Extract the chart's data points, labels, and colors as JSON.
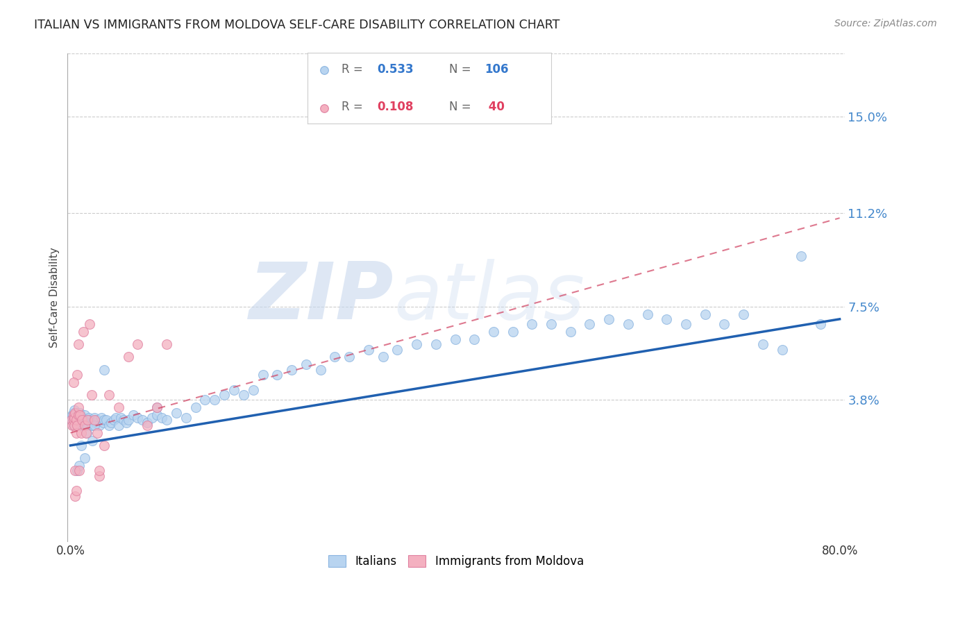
{
  "title": "ITALIAN VS IMMIGRANTS FROM MOLDOVA SELF-CARE DISABILITY CORRELATION CHART",
  "source": "Source: ZipAtlas.com",
  "ylabel_ticks": [
    0.038,
    0.075,
    0.112,
    0.15
  ],
  "ylabel_labels": [
    "3.8%",
    "7.5%",
    "11.2%",
    "15.0%"
  ],
  "xmin": 0.0,
  "xmax": 0.8,
  "ymin": -0.018,
  "ymax": 0.175,
  "watermark_zip": "ZIP",
  "watermark_atlas": "atlas",
  "legend_italian_r": "0.533",
  "legend_italian_n": "106",
  "legend_moldova_r": "0.108",
  "legend_moldova_n": " 40",
  "italian_color": "#b8d4f0",
  "moldova_color": "#f4b0c0",
  "line_italian_color": "#2060b0",
  "line_moldova_color": "#d04060",
  "ylabel": "Self-Care Disability",
  "italian_x": [
    0.001,
    0.002,
    0.002,
    0.003,
    0.003,
    0.004,
    0.004,
    0.005,
    0.005,
    0.006,
    0.006,
    0.007,
    0.007,
    0.008,
    0.008,
    0.009,
    0.009,
    0.01,
    0.01,
    0.011,
    0.012,
    0.013,
    0.014,
    0.015,
    0.016,
    0.018,
    0.019,
    0.02,
    0.022,
    0.024,
    0.025,
    0.026,
    0.028,
    0.03,
    0.032,
    0.034,
    0.035,
    0.037,
    0.04,
    0.042,
    0.045,
    0.047,
    0.05,
    0.052,
    0.055,
    0.058,
    0.06,
    0.065,
    0.07,
    0.075,
    0.08,
    0.085,
    0.09,
    0.095,
    0.1,
    0.11,
    0.12,
    0.13,
    0.14,
    0.15,
    0.16,
    0.17,
    0.18,
    0.19,
    0.2,
    0.215,
    0.23,
    0.245,
    0.26,
    0.275,
    0.29,
    0.31,
    0.325,
    0.34,
    0.36,
    0.38,
    0.4,
    0.42,
    0.44,
    0.46,
    0.48,
    0.5,
    0.52,
    0.54,
    0.56,
    0.58,
    0.6,
    0.62,
    0.64,
    0.66,
    0.68,
    0.7,
    0.72,
    0.74,
    0.76,
    0.78,
    0.09,
    0.035,
    0.025,
    0.015,
    0.007,
    0.009,
    0.011,
    0.013,
    0.017,
    0.023
  ],
  "italian_y": [
    0.03,
    0.031,
    0.032,
    0.028,
    0.033,
    0.029,
    0.034,
    0.03,
    0.031,
    0.028,
    0.033,
    0.029,
    0.032,
    0.03,
    0.028,
    0.032,
    0.031,
    0.03,
    0.033,
    0.028,
    0.03,
    0.031,
    0.029,
    0.032,
    0.03,
    0.028,
    0.031,
    0.03,
    0.028,
    0.03,
    0.031,
    0.029,
    0.03,
    0.028,
    0.031,
    0.029,
    0.03,
    0.03,
    0.028,
    0.029,
    0.03,
    0.031,
    0.028,
    0.031,
    0.03,
    0.029,
    0.03,
    0.032,
    0.031,
    0.03,
    0.029,
    0.031,
    0.032,
    0.031,
    0.03,
    0.033,
    0.031,
    0.035,
    0.038,
    0.038,
    0.04,
    0.042,
    0.04,
    0.042,
    0.048,
    0.048,
    0.05,
    0.052,
    0.05,
    0.055,
    0.055,
    0.058,
    0.055,
    0.058,
    0.06,
    0.06,
    0.062,
    0.062,
    0.065,
    0.065,
    0.068,
    0.068,
    0.065,
    0.068,
    0.07,
    0.068,
    0.072,
    0.07,
    0.068,
    0.072,
    0.068,
    0.072,
    0.06,
    0.058,
    0.095,
    0.068,
    0.035,
    0.05,
    0.028,
    0.015,
    0.01,
    0.012,
    0.02,
    0.03,
    0.025,
    0.022
  ],
  "moldova_x": [
    0.001,
    0.002,
    0.003,
    0.003,
    0.004,
    0.004,
    0.005,
    0.005,
    0.006,
    0.006,
    0.007,
    0.008,
    0.008,
    0.009,
    0.01,
    0.011,
    0.012,
    0.013,
    0.015,
    0.016,
    0.018,
    0.02,
    0.022,
    0.025,
    0.028,
    0.03,
    0.035,
    0.04,
    0.05,
    0.06,
    0.07,
    0.08,
    0.09,
    0.1,
    0.03,
    0.005,
    0.006,
    0.007,
    0.003,
    0.008
  ],
  "moldova_y": [
    0.03,
    0.028,
    0.032,
    0.03,
    0.031,
    0.028,
    0.01,
    0.033,
    0.03,
    0.025,
    0.028,
    0.032,
    0.035,
    0.01,
    0.032,
    0.025,
    0.03,
    0.065,
    0.028,
    0.025,
    0.03,
    0.068,
    0.04,
    0.03,
    0.025,
    0.008,
    0.02,
    0.04,
    0.035,
    0.055,
    0.06,
    0.028,
    0.035,
    0.06,
    0.01,
    0.0,
    0.002,
    0.048,
    0.045,
    0.06
  ],
  "it_line_x": [
    0.0,
    0.8
  ],
  "it_line_y": [
    0.02,
    0.07
  ],
  "md_line_x": [
    0.0,
    0.8
  ],
  "md_line_y": [
    0.025,
    0.11
  ]
}
